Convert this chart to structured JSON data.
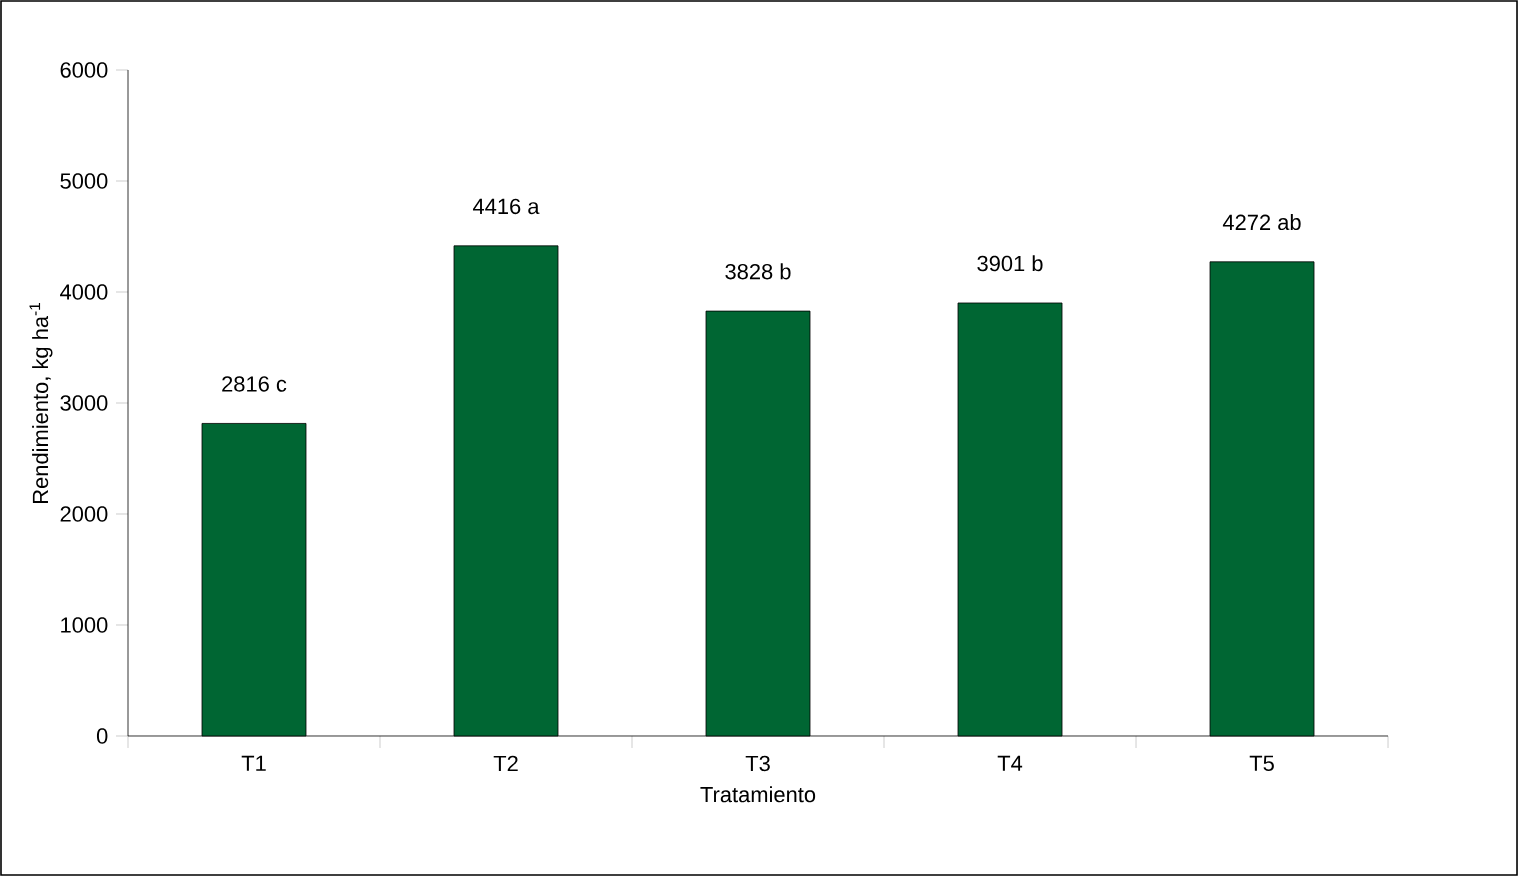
{
  "chart_data": {
    "type": "bar",
    "xlabel": "Tratamiento",
    "ylabel": "Rendimiento, kg ha$^{-1}$",
    "categories": [
      "T1",
      "T2",
      "T3",
      "T4",
      "T5"
    ],
    "values": [
      2816,
      4416,
      3828,
      3901,
      4272
    ],
    "value_labels": [
      "2816  c",
      "4416  a",
      "3828  b",
      "3901  b",
      "4272  ab"
    ],
    "color": "#006633",
    "ylim": [
      0,
      6000
    ],
    "yticks": [
      0,
      1000,
      2000,
      3000,
      4000,
      5000,
      6000
    ]
  }
}
